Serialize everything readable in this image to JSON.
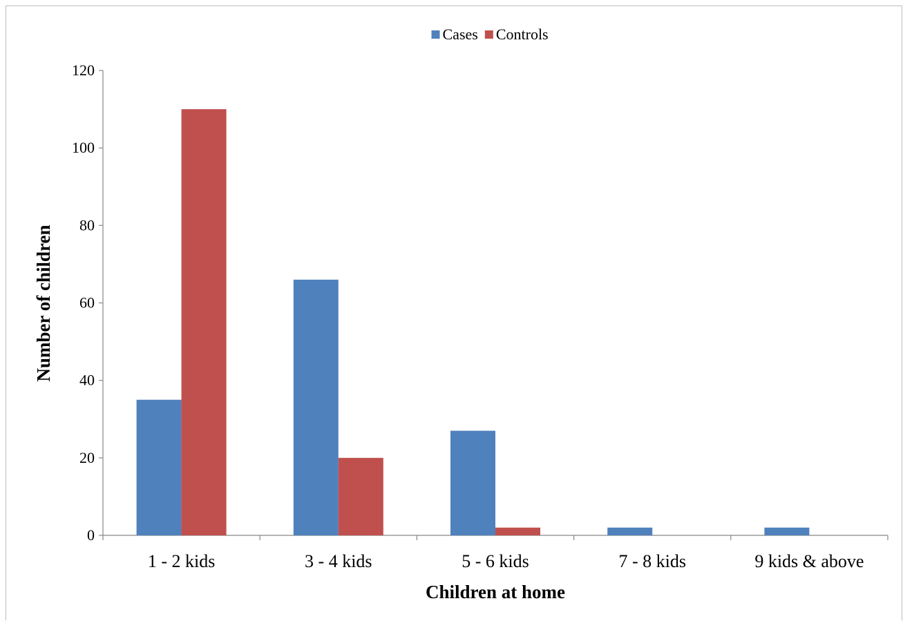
{
  "chart_data": {
    "type": "bar",
    "categories": [
      "1 - 2 kids",
      "3 - 4 kids",
      "5 - 6 kids",
      "7 - 8 kids",
      "9 kids & above"
    ],
    "series": [
      {
        "name": "Cases",
        "values": [
          35,
          66,
          27,
          2,
          2
        ],
        "color": "#4f81bd"
      },
      {
        "name": "Controls",
        "values": [
          110,
          20,
          2,
          0,
          0
        ],
        "color": "#c0504d"
      }
    ],
    "xlabel": "Children at home",
    "ylabel": "Number of children",
    "ylim": [
      0,
      120
    ],
    "yticks": [
      0,
      20,
      40,
      60,
      80,
      100,
      120
    ],
    "grid": false,
    "legend_position": "top-center"
  }
}
